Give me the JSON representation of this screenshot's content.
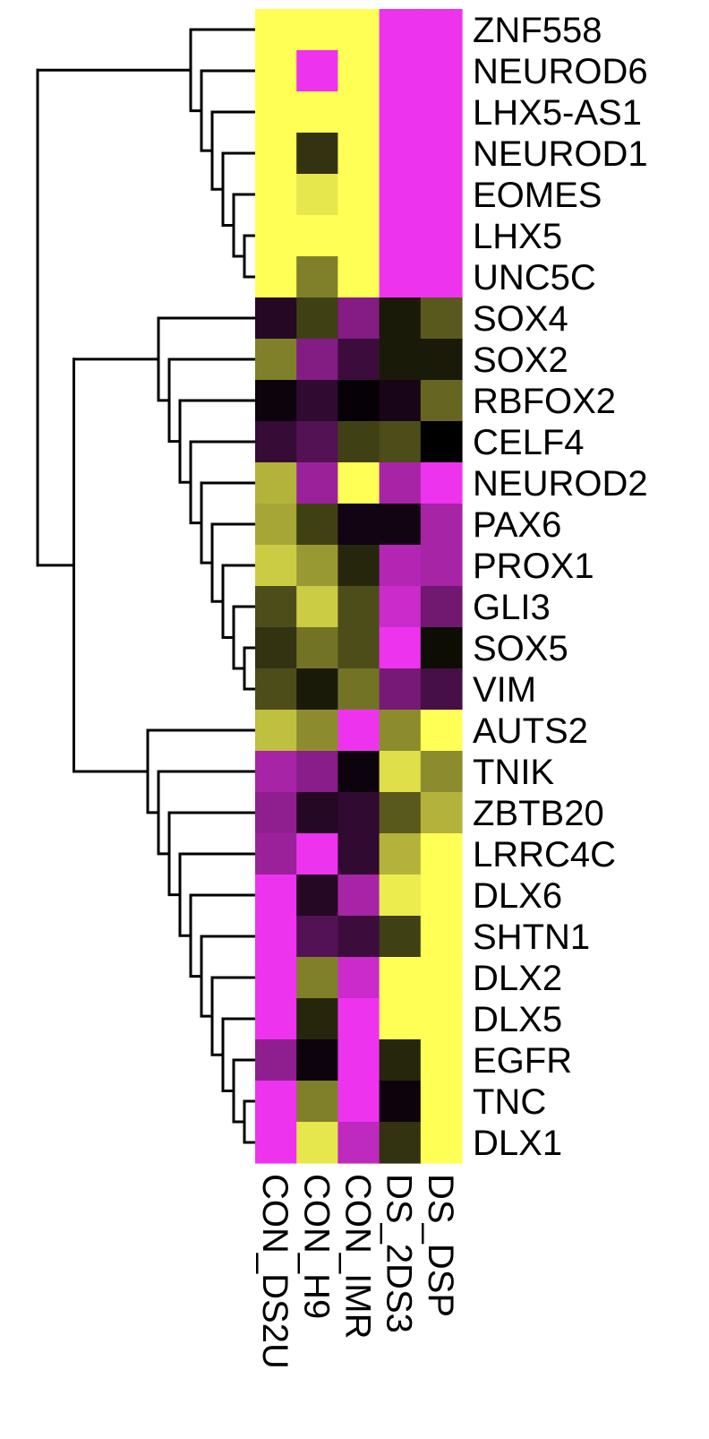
{
  "chart_data": {
    "type": "heatmap",
    "rows": [
      "ZNF558",
      "NEUROD6",
      "LHX5-AS1",
      "NEUROD1",
      "EOMES",
      "LHX5",
      "UNC5C",
      "SOX4",
      "SOX2",
      "RBFOX2",
      "CELF4",
      "NEUROD2",
      "PAX6",
      "PROX1",
      "GLI3",
      "SOX5",
      "VIM",
      "AUTS2",
      "TNIK",
      "ZBTB20",
      "LRRC4C",
      "DLX6",
      "SHTN1",
      "DLX2",
      "DLX5",
      "EGFR",
      "TNC",
      "DLX1"
    ],
    "columns": [
      "CON_DS2U",
      "CON_H9",
      "CON_IMR",
      "DS_2DS3",
      "DS_DSP"
    ],
    "values": [
      [
        2.0,
        2.0,
        2.0,
        -2.0,
        -2.0
      ],
      [
        2.0,
        -2.0,
        2.0,
        -2.0,
        -2.0
      ],
      [
        2.0,
        2.0,
        2.0,
        -2.0,
        -2.0
      ],
      [
        2.0,
        0.4,
        2.0,
        -2.0,
        -2.0
      ],
      [
        2.0,
        1.8,
        2.0,
        -2.0,
        -2.0
      ],
      [
        2.0,
        2.0,
        2.0,
        -2.0,
        -2.0
      ],
      [
        2.0,
        1.0,
        2.0,
        -2.0,
        -2.0
      ],
      [
        -0.3,
        0.5,
        -1.1,
        0.2,
        0.7
      ],
      [
        1.0,
        -1.1,
        -0.5,
        0.2,
        0.2
      ],
      [
        -0.1,
        -0.4,
        -0.05,
        -0.2,
        0.8
      ],
      [
        -0.45,
        -0.7,
        0.5,
        0.6,
        0.0
      ],
      [
        1.4,
        -1.3,
        2.0,
        -1.4,
        -2.0
      ],
      [
        1.3,
        0.5,
        -0.15,
        -0.15,
        -1.4
      ],
      [
        1.6,
        1.2,
        0.3,
        -1.5,
        -1.4
      ],
      [
        0.6,
        1.6,
        0.6,
        -1.7,
        -0.95
      ],
      [
        0.4,
        0.9,
        0.6,
        -2.0,
        0.1
      ],
      [
        0.6,
        0.2,
        0.9,
        -1.0,
        -0.6
      ],
      [
        1.5,
        1.1,
        -2.0,
        1.1,
        2.0
      ],
      [
        -1.4,
        -1.15,
        -0.1,
        1.75,
        1.1
      ],
      [
        -1.2,
        -0.3,
        -0.4,
        0.7,
        1.4
      ],
      [
        -1.3,
        -2.0,
        -0.4,
        1.4,
        2.0
      ],
      [
        -2.0,
        -0.3,
        -1.4,
        1.85,
        2.0
      ],
      [
        -2.0,
        -0.7,
        -0.5,
        0.5,
        2.0
      ],
      [
        -2.0,
        1.0,
        -1.7,
        2.0,
        2.0
      ],
      [
        -2.0,
        0.3,
        -2.0,
        2.0,
        2.0
      ],
      [
        -1.2,
        -0.1,
        -2.0,
        0.3,
        2.0
      ],
      [
        -2.0,
        1.0,
        -2.0,
        -0.1,
        2.0
      ],
      [
        -2.0,
        1.8,
        -1.6,
        0.4,
        2.0
      ]
    ],
    "color_scale": {
      "min": -2,
      "max": 2,
      "low": "#ee33ee",
      "mid": "#000000",
      "high": "#ffff55"
    },
    "row_dendrogram": true,
    "legend": "none"
  }
}
